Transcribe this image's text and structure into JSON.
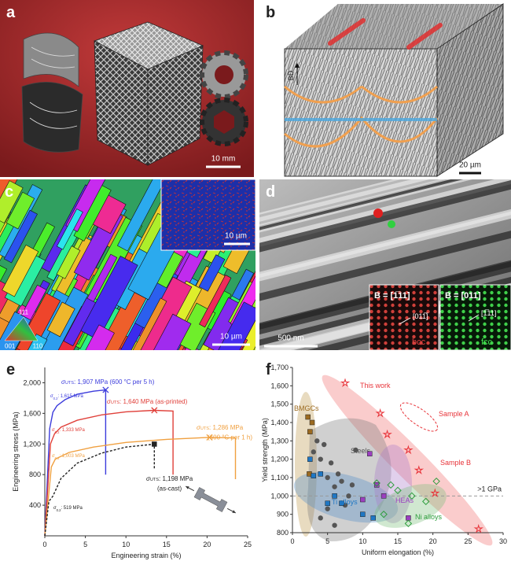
{
  "panels": {
    "a": {
      "label": "a",
      "scale_bar": "10 mm"
    },
    "b": {
      "label": "b",
      "axis": "BD",
      "scale_bar": "20 µm"
    },
    "c": {
      "label": "c",
      "inset_scale_bar": "10 µm",
      "scale_bar": "10 µm",
      "legend": [
        "111",
        "001",
        "110"
      ]
    },
    "d": {
      "label": "d",
      "scale_bar": "500 nm",
      "insets": [
        {
          "zone": "B = [1̅11]",
          "spot": "[011̅]",
          "phase": "bcc"
        },
        {
          "zone": "B = [011]",
          "spot": "[1̅11]",
          "phase": "fcc"
        }
      ]
    }
  },
  "chart_data": [
    {
      "type": "line",
      "label": "e",
      "xlabel": "Engineering strain (%)",
      "ylabel": "Engineering stress (MPa)",
      "xlim": [
        0,
        25
      ],
      "xticks": [
        0,
        5,
        10,
        15,
        20,
        25
      ],
      "ylim": [
        0,
        2200
      ],
      "yticks": [
        400,
        800,
        {
          "value": 1200,
          "label": "1,200"
        },
        {
          "value": 1600,
          "label": "1,600"
        },
        {
          "value": 2000,
          "label": "2,000"
        }
      ],
      "series": [
        {
          "color": "#3b3bdc",
          "marker": "x",
          "dash": false,
          "x": [
            0,
            0.6,
            1,
            1.5,
            2.5,
            4,
            6,
            7.5,
            7.5
          ],
          "values": [
            0,
            1400,
            1615,
            1700,
            1780,
            1850,
            1890,
            1907,
            800
          ]
        },
        {
          "color": "#e0403a",
          "marker": "x",
          "dash": false,
          "x": [
            0,
            0.7,
            1.2,
            2,
            4,
            7,
            10,
            13.5,
            15.8,
            15.8
          ],
          "values": [
            0,
            1200,
            1333,
            1420,
            1510,
            1580,
            1620,
            1640,
            1630,
            800
          ]
        },
        {
          "color": "#f0a040",
          "marker": "x",
          "dash": false,
          "x": [
            0,
            0.8,
            1.3,
            3,
            6,
            10,
            15,
            20.3,
            23.5,
            23.5
          ],
          "values": [
            0,
            900,
            1003,
            1090,
            1160,
            1220,
            1260,
            1286,
            1280,
            740
          ]
        },
        {
          "color": "#222222",
          "marker": "square",
          "dash": true,
          "x": [
            0,
            0.5,
            1,
            2,
            4,
            7,
            10,
            13.5,
            13.5
          ],
          "values": [
            0,
            450,
            519,
            750,
            950,
            1080,
            1160,
            1198,
            880
          ]
        }
      ],
      "annotations": [
        {
          "symbol": "σ",
          "subscript": "UTS",
          "text": ": 1,907 MPa (600 °C per 5 h)",
          "color": "#3b3bdc"
        },
        {
          "symbol": "σ",
          "subscript": "0.2",
          "text": ": 1,615 MPa",
          "color": "#3b3bdc"
        },
        {
          "symbol": "σ",
          "subscript": "UTS",
          "text": ": 1,640 MPa (as-printed)",
          "color": "#e0403a"
        },
        {
          "symbol": "σ",
          "subscript": "0.2",
          "text": ": 1,333 MPa",
          "color": "#e0403a"
        },
        {
          "symbol": "σ",
          "subscript": "UTS",
          "text": ": 1,286 MPa",
          "note": "(600 °C per 1 h)",
          "color": "#f0a040"
        },
        {
          "symbol": "σ",
          "subscript": "0.2",
          "text": ": 1,003 MPa",
          "color": "#f0a040"
        },
        {
          "symbol": "σ",
          "subscript": "UTS",
          "text": ": 1,198 MPa",
          "note": "(as-cast)",
          "color": "#222222"
        },
        {
          "symbol": "σ",
          "subscript": "0.2",
          "text": ": 519 MPa",
          "color": "#222222"
        }
      ]
    },
    {
      "type": "scatter",
      "label": "f",
      "xlabel": "Uniform elongation (%)",
      "ylabel": "Yield strength (MPa)",
      "xlim": [
        0,
        30
      ],
      "xticks": [
        0,
        5,
        10,
        15,
        20,
        25,
        30
      ],
      "ylim": [
        800,
        1700
      ],
      "yticks": [
        800,
        900,
        {
          "value": 1000,
          "label": "1,000"
        },
        {
          "value": 1100,
          "label": "1,100"
        },
        {
          "value": 1200,
          "label": "1,200"
        },
        {
          "value": 1300,
          "label": "1,300"
        },
        {
          "value": 1400,
          "label": "1,400"
        },
        {
          "value": 1500,
          "label": "1,500"
        },
        {
          "value": 1600,
          "label": "1,600"
        },
        {
          "value": 1700,
          "label": "1,700"
        }
      ],
      "reference_line": {
        "value": 1000,
        "label": ">1 GPa"
      },
      "series": [
        {
          "name": "This work",
          "color": "#e8343a",
          "marker": "star",
          "x": [
            7.5,
            12.5,
            13.5,
            16.5,
            18,
            20.3,
            26.5
          ],
          "values": [
            1615,
            1450,
            1335,
            1250,
            1140,
            1015,
            820
          ]
        },
        {
          "name": "BMGCs",
          "color": "#9b6a20",
          "marker": "square",
          "x": [
            2.2,
            2.5,
            2.8,
            2.4
          ],
          "values": [
            1430,
            1350,
            1400,
            1120
          ]
        },
        {
          "name": "Steels",
          "color": "#555555",
          "marker": "circle",
          "x": [
            3,
            4,
            4.5,
            5,
            5.5,
            6,
            6.5,
            7,
            7.5,
            8,
            5,
            4,
            6,
            3.5,
            8.5,
            9
          ],
          "values": [
            1240,
            1200,
            1280,
            1100,
            1180,
            1050,
            1120,
            1080,
            950,
            1000,
            930,
            880,
            840,
            1300,
            1060,
            1250
          ]
        },
        {
          "name": "Ti alloys",
          "color": "#1f77c4",
          "marker": "square",
          "x": [
            4,
            5,
            6,
            7,
            10,
            11.5,
            2.5,
            3
          ],
          "values": [
            1120,
            960,
            1000,
            960,
            900,
            880,
            1200,
            1110
          ]
        },
        {
          "name": "HEAs",
          "color": "#9b3fc0",
          "marker": "square",
          "x": [
            11,
            12,
            13,
            16.5,
            10
          ],
          "values": [
            1230,
            1060,
            1000,
            880,
            980
          ]
        },
        {
          "name": "Ni alloys",
          "color": "#2a9d3a",
          "marker": "diamond",
          "x": [
            12,
            14,
            15,
            17,
            19,
            20.5,
            16.5,
            13
          ],
          "values": [
            1070,
            1060,
            1030,
            1000,
            970,
            1080,
            850,
            900
          ]
        }
      ],
      "annotations": [
        "Sample A",
        "Sample B"
      ]
    }
  ]
}
